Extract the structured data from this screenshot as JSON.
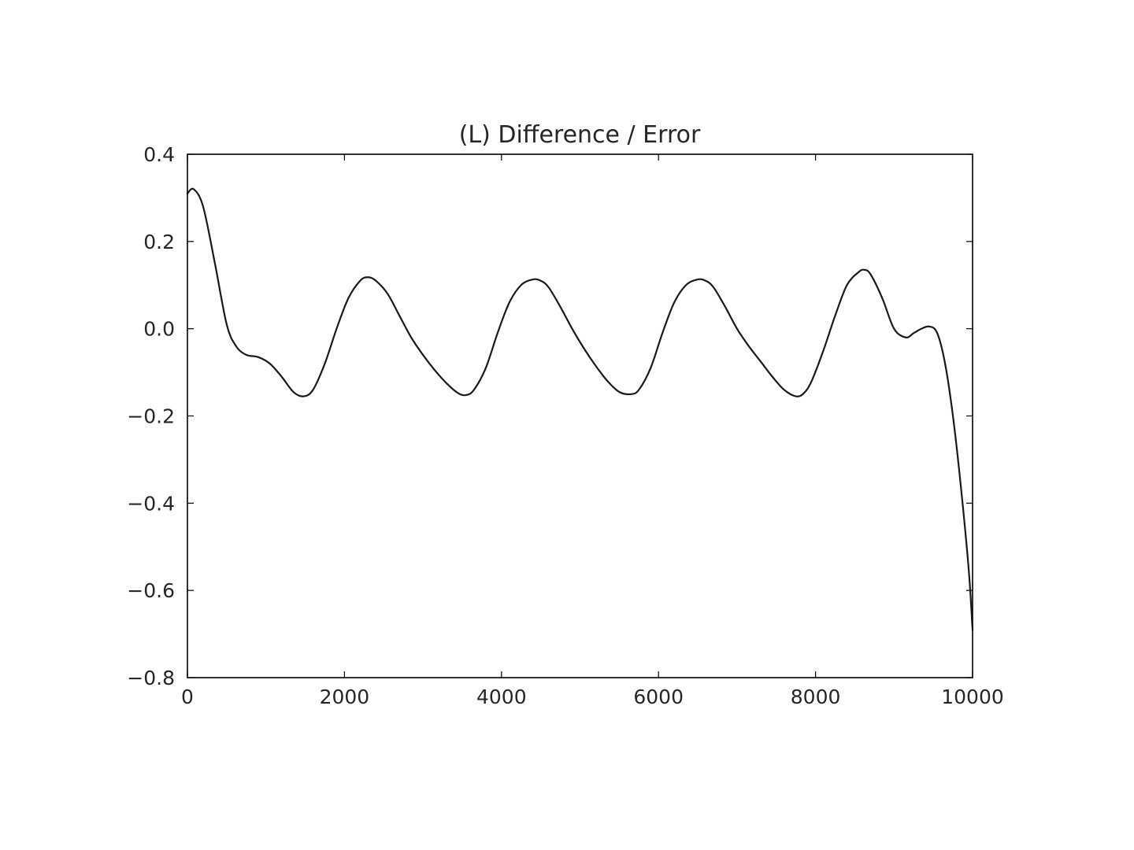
{
  "chart_data": {
    "type": "line",
    "title": "(L) Difference / Error",
    "xlabel": "",
    "ylabel": "",
    "xlim": [
      0,
      10000
    ],
    "ylim": [
      -0.8,
      0.4
    ],
    "xticks": [
      0,
      2000,
      4000,
      6000,
      8000,
      10000
    ],
    "xtick_labels": [
      "0",
      "2000",
      "4000",
      "6000",
      "8000",
      "10000"
    ],
    "yticks": [
      -0.8,
      -0.6,
      -0.4,
      -0.2,
      0.0,
      0.2,
      0.4
    ],
    "ytick_labels": [
      "−0.8",
      "−0.6",
      "−0.4",
      "−0.2",
      "0.0",
      "0.2",
      "0.4"
    ],
    "grid": false,
    "line_color": "#1a1a1a",
    "series": [
      {
        "x": [
          0,
          80,
          200,
          350,
          500,
          620,
          750,
          900,
          1050,
          1200,
          1350,
          1480,
          1600,
          1750,
          1900,
          2050,
          2200,
          2300,
          2400,
          2550,
          2700,
          2850,
          3000,
          3150,
          3300,
          3450,
          3550,
          3650,
          3800,
          3950,
          4100,
          4250,
          4400,
          4500,
          4600,
          4750,
          4900,
          5050,
          5200,
          5350,
          5500,
          5650,
          5750,
          5900,
          6050,
          6200,
          6350,
          6500,
          6600,
          6700,
          6850,
          7000,
          7150,
          7300,
          7450,
          7600,
          7750,
          7850,
          7950,
          8100,
          8250,
          8400,
          8550,
          8620,
          8700,
          8850,
          9000,
          9150,
          9250,
          9350,
          9450,
          9550,
          9650,
          9750,
          9850,
          9950,
          10000
        ],
        "y": [
          0.31,
          0.32,
          0.28,
          0.15,
          0.01,
          -0.04,
          -0.06,
          -0.065,
          -0.08,
          -0.11,
          -0.145,
          -0.155,
          -0.14,
          -0.08,
          0.0,
          0.07,
          0.11,
          0.118,
          0.11,
          0.08,
          0.03,
          -0.02,
          -0.06,
          -0.095,
          -0.125,
          -0.148,
          -0.152,
          -0.14,
          -0.09,
          -0.01,
          0.06,
          0.1,
          0.113,
          0.11,
          0.095,
          0.05,
          0.0,
          -0.045,
          -0.085,
          -0.12,
          -0.145,
          -0.15,
          -0.14,
          -0.09,
          -0.01,
          0.06,
          0.1,
          0.113,
          0.11,
          0.095,
          0.05,
          0.0,
          -0.04,
          -0.075,
          -0.11,
          -0.14,
          -0.155,
          -0.148,
          -0.12,
          -0.05,
          0.03,
          0.1,
          0.13,
          0.135,
          0.125,
          0.07,
          0.0,
          -0.02,
          -0.01,
          0.0,
          0.005,
          -0.01,
          -0.08,
          -0.2,
          -0.36,
          -0.55,
          -0.69
        ]
      }
    ]
  }
}
